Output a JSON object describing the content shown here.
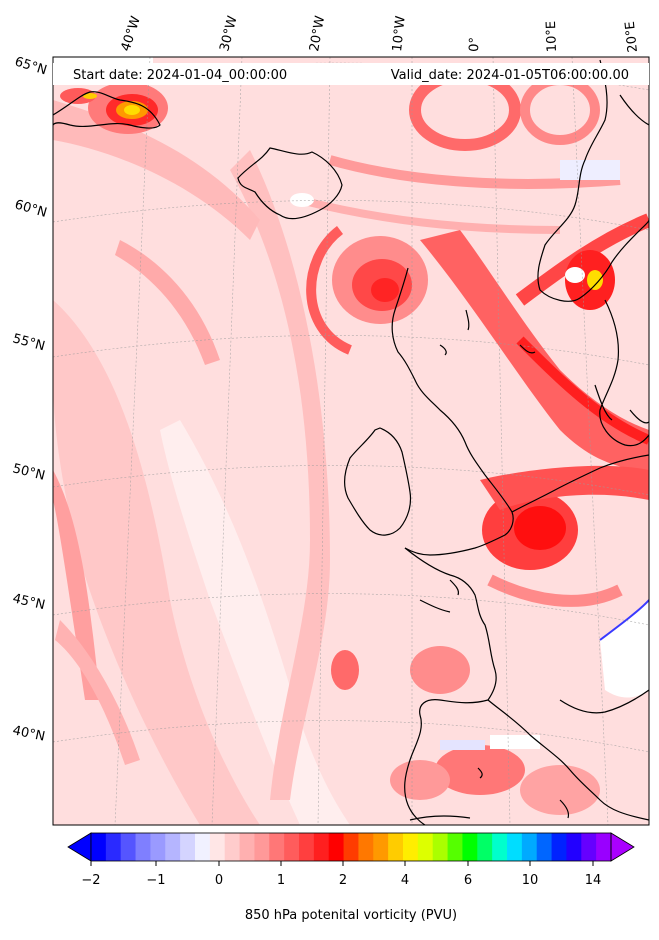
{
  "map": {
    "start_label": "Start date: 2024-01-04_00:00:00",
    "valid_label": "Valid_date: 2024-01-05T06:00:00.00",
    "lon_labels": [
      "40°W",
      "30°W",
      "20°W",
      "10°W",
      "0°",
      "10°E",
      "20°E"
    ],
    "lat_labels": [
      "65°N",
      "60°N",
      "55°N",
      "50°N",
      "45°N",
      "40°N"
    ],
    "projection": "conic",
    "gridlines": true,
    "coastlines": true
  },
  "colorbar": {
    "label": "850 hPa potenital vorticity (PVU)",
    "tick_labels": [
      "−2",
      "−1",
      "0",
      "1",
      "2",
      "4",
      "6",
      "10",
      "14"
    ],
    "extend": "both",
    "colors": [
      "#0000ff",
      "#2a2aff",
      "#5555ff",
      "#7f7fff",
      "#9a9aff",
      "#b5b5ff",
      "#d4d4ff",
      "#f1f1ff",
      "#ffe6e6",
      "#ffcccc",
      "#ffb0b0",
      "#ff9999",
      "#ff7777",
      "#ff5c5c",
      "#ff3f3f",
      "#ff1f1f",
      "#ff0000",
      "#ff3c00",
      "#ff7800",
      "#ff9900",
      "#ffcc00",
      "#ffee00",
      "#ddff00",
      "#aaff00",
      "#55ff00",
      "#00ff00",
      "#00ff66",
      "#00ffcc",
      "#00ddff",
      "#00aaff",
      "#0066ff",
      "#0022ff",
      "#2200ff",
      "#6600ff",
      "#9900ff"
    ],
    "extend_min_color": "#0000ff",
    "extend_max_color": "#aa00ff"
  }
}
